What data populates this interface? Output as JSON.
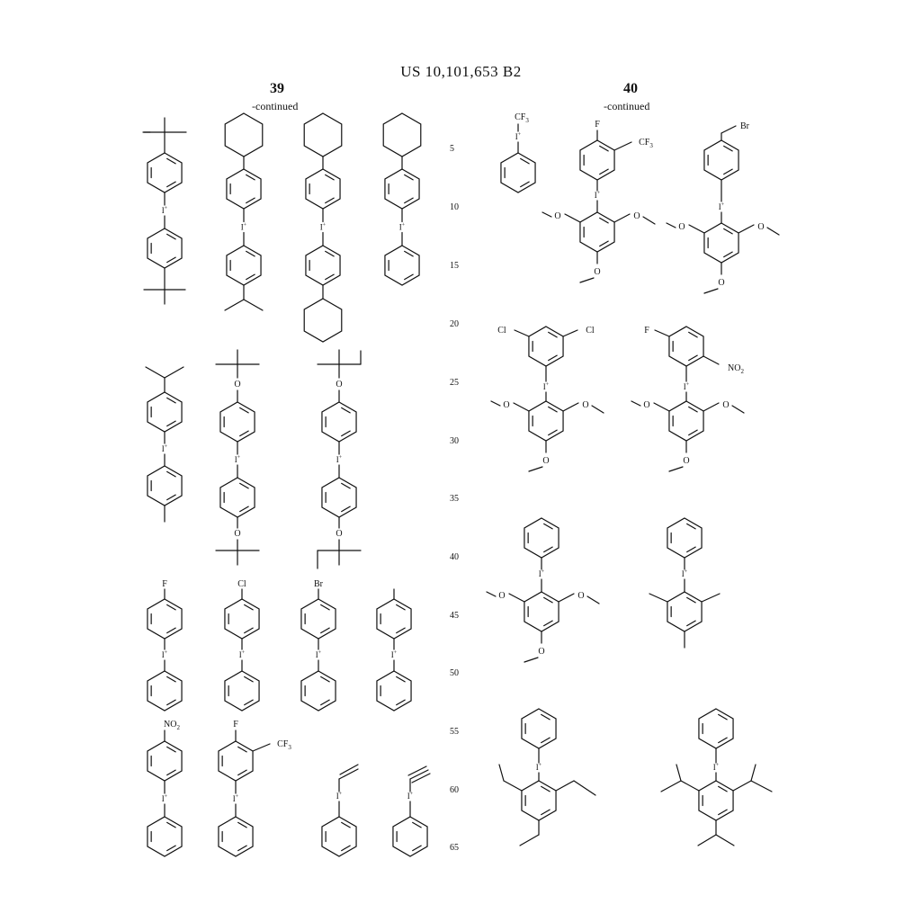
{
  "patent_number": "US 10,101,653 B2",
  "left_column": {
    "number": "39",
    "continued": "-continued"
  },
  "right_column": {
    "number": "40",
    "continued": "-continued"
  },
  "line_numbers": [
    "5",
    "10",
    "15",
    "20",
    "25",
    "30",
    "35",
    "40",
    "45",
    "50",
    "55",
    "60",
    "65"
  ],
  "atom_labels": {
    "iodonium": "I",
    "iodonium_charge": "+",
    "oxygen": "O",
    "fluorine": "F",
    "chlorine": "Cl",
    "bromine": "Br",
    "nitro": "NO",
    "nitro_sub": "2",
    "trifluoromethyl": "CF",
    "trifluoromethyl_sub": "3"
  }
}
